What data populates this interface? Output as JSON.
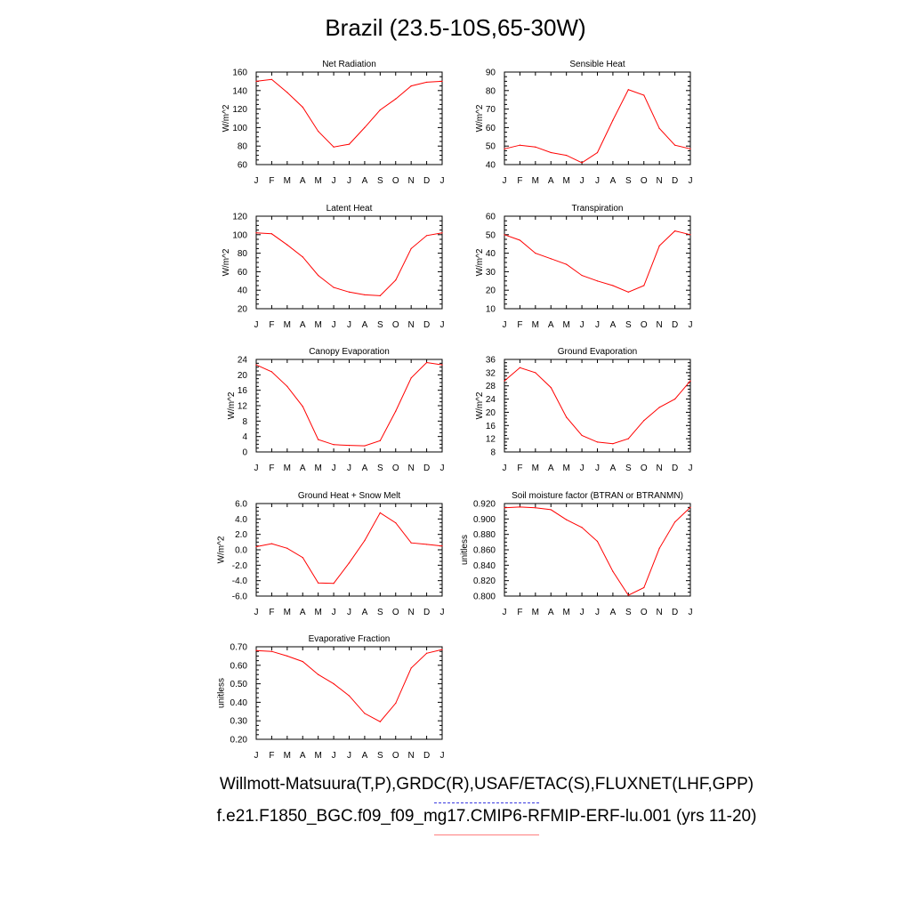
{
  "page": {
    "title": "Brazil (23.5-10S,65-30W)",
    "caption_obs": "Willmott-Matsuura(T,P),GRDC(R),USAF/ETAC(S),FLUXNET(LHF,GPP)",
    "caption_model": "f.e21.F1850_BGC.f09_f09_mg17.CMIP6-RFMIP-ERF-lu.001 (yrs 11-20)",
    "line_color": "#ff0000",
    "obs_legend_color": "#3a3adf",
    "model_legend_color": "#ff7f7f"
  },
  "chart_data": [
    {
      "type": "line",
      "title": "Net Radiation",
      "ylabel": "W/m^2",
      "categories": [
        "J",
        "F",
        "M",
        "A",
        "M",
        "J",
        "J",
        "A",
        "S",
        "O",
        "N",
        "D",
        "J"
      ],
      "ylim": [
        60,
        160
      ],
      "yticks": [
        "60",
        "80",
        "100",
        "120",
        "140",
        "160"
      ],
      "values": [
        150,
        152,
        138,
        122,
        96,
        79,
        82,
        100,
        119,
        131,
        145,
        149,
        150
      ]
    },
    {
      "type": "line",
      "title": "Sensible Heat",
      "ylabel": "W/m^2",
      "categories": [
        "J",
        "F",
        "M",
        "A",
        "M",
        "J",
        "J",
        "A",
        "S",
        "O",
        "N",
        "D",
        "J"
      ],
      "ylim": [
        40,
        90
      ],
      "yticks": [
        "40",
        "50",
        "60",
        "70",
        "80",
        "90"
      ],
      "values": [
        48.5,
        50.5,
        49.5,
        46.5,
        45,
        41,
        46.5,
        64,
        80.5,
        77.5,
        59.5,
        50.5,
        48.5
      ]
    },
    {
      "type": "line",
      "title": "Latent Heat",
      "ylabel": "W/m^2",
      "categories": [
        "J",
        "F",
        "M",
        "A",
        "M",
        "J",
        "J",
        "A",
        "S",
        "O",
        "N",
        "D",
        "J"
      ],
      "ylim": [
        20,
        120
      ],
      "yticks": [
        "20",
        "40",
        "60",
        "80",
        "100",
        "120"
      ],
      "values": [
        102,
        101,
        89,
        76,
        56,
        43,
        38,
        35,
        34,
        51,
        85,
        99,
        102
      ]
    },
    {
      "type": "line",
      "title": "Transpiration",
      "ylabel": "W/m^2",
      "categories": [
        "J",
        "F",
        "M",
        "A",
        "M",
        "J",
        "J",
        "A",
        "S",
        "O",
        "N",
        "D",
        "J"
      ],
      "ylim": [
        10,
        60
      ],
      "yticks": [
        "10",
        "20",
        "30",
        "40",
        "50",
        "60"
      ],
      "values": [
        50,
        47,
        40,
        37,
        34,
        28,
        25,
        22.5,
        19,
        22.5,
        44,
        52,
        50
      ]
    },
    {
      "type": "line",
      "title": "Canopy Evaporation",
      "ylabel": "W/m^2",
      "categories": [
        "J",
        "F",
        "M",
        "A",
        "M",
        "J",
        "J",
        "A",
        "S",
        "O",
        "N",
        "D",
        "J"
      ],
      "ylim": [
        0,
        24
      ],
      "yticks": [
        "0",
        "4",
        "8",
        "12",
        "16",
        "20",
        "24"
      ],
      "values": [
        22.6,
        20.8,
        17,
        11.8,
        3.2,
        1.9,
        1.7,
        1.6,
        2.9,
        10.6,
        19.2,
        23.2,
        22.6
      ]
    },
    {
      "type": "line",
      "title": "Ground Evaporation",
      "ylabel": "W/m^2",
      "categories": [
        "J",
        "F",
        "M",
        "A",
        "M",
        "J",
        "J",
        "A",
        "S",
        "O",
        "N",
        "D",
        "J"
      ],
      "ylim": [
        8,
        36
      ],
      "yticks": [
        "8",
        "12",
        "16",
        "20",
        "24",
        "28",
        "32",
        "36"
      ],
      "values": [
        29.5,
        33.5,
        32,
        27.5,
        18.5,
        13,
        11,
        10.5,
        12,
        17.5,
        21.5,
        24,
        29.5
      ]
    },
    {
      "type": "line",
      "title": "Ground Heat + Snow Melt",
      "ylabel": "W/m^2",
      "categories": [
        "J",
        "F",
        "M",
        "A",
        "M",
        "J",
        "J",
        "A",
        "S",
        "O",
        "N",
        "D",
        "J"
      ],
      "ylim": [
        -6,
        6
      ],
      "yticks": [
        "-6.0",
        "-4.0",
        "-2.0",
        "0.0",
        "2.0",
        "4.0",
        "6.0"
      ],
      "values": [
        0.4,
        0.8,
        0.2,
        -1,
        -4.3,
        -4.35,
        -1.7,
        1.2,
        4.8,
        3.5,
        0.9,
        0.7,
        0.5
      ]
    },
    {
      "type": "line",
      "title": "Soil moisture factor (BTRAN or BTRANMN)",
      "ylabel": "unitless",
      "categories": [
        "J",
        "F",
        "M",
        "A",
        "M",
        "J",
        "J",
        "A",
        "S",
        "O",
        "N",
        "D",
        "J"
      ],
      "ylim": [
        0.8,
        0.92
      ],
      "yticks": [
        "0.800",
        "0.820",
        "0.840",
        "0.860",
        "0.880",
        "0.900",
        "0.920"
      ],
      "values": [
        0.9145,
        0.9155,
        0.9145,
        0.912,
        0.899,
        0.889,
        0.871,
        0.832,
        0.801,
        0.811,
        0.862,
        0.896,
        0.915
      ]
    },
    {
      "type": "line",
      "title": "Evaporative Fraction",
      "ylabel": "unitless",
      "categories": [
        "J",
        "F",
        "M",
        "A",
        "M",
        "J",
        "J",
        "A",
        "S",
        "O",
        "N",
        "D",
        "J"
      ],
      "ylim": [
        0.2,
        0.7
      ],
      "yticks": [
        "0.20",
        "0.30",
        "0.40",
        "0.50",
        "0.60",
        "0.70"
      ],
      "values": [
        0.68,
        0.675,
        0.65,
        0.62,
        0.55,
        0.5,
        0.435,
        0.34,
        0.295,
        0.395,
        0.585,
        0.665,
        0.685
      ]
    }
  ]
}
